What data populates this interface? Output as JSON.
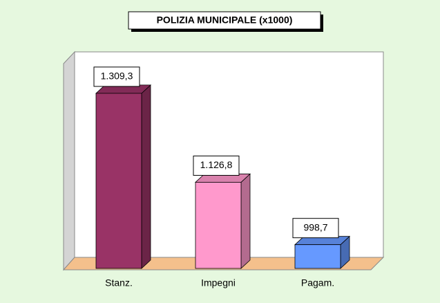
{
  "chart_data": {
    "type": "bar3d",
    "title": "POLIZIA MUNICIPALE (x1000)",
    "categories": [
      "Stanz.",
      "Impegni",
      "Pagam."
    ],
    "values": [
      1309.3,
      1126.8,
      998.7
    ],
    "value_labels": [
      "1.309,3",
      "1.126,8",
      "998,7"
    ],
    "colors": [
      "#993366",
      "#ff99cc",
      "#6699ff"
    ],
    "ylim": [
      950,
      1400
    ]
  }
}
